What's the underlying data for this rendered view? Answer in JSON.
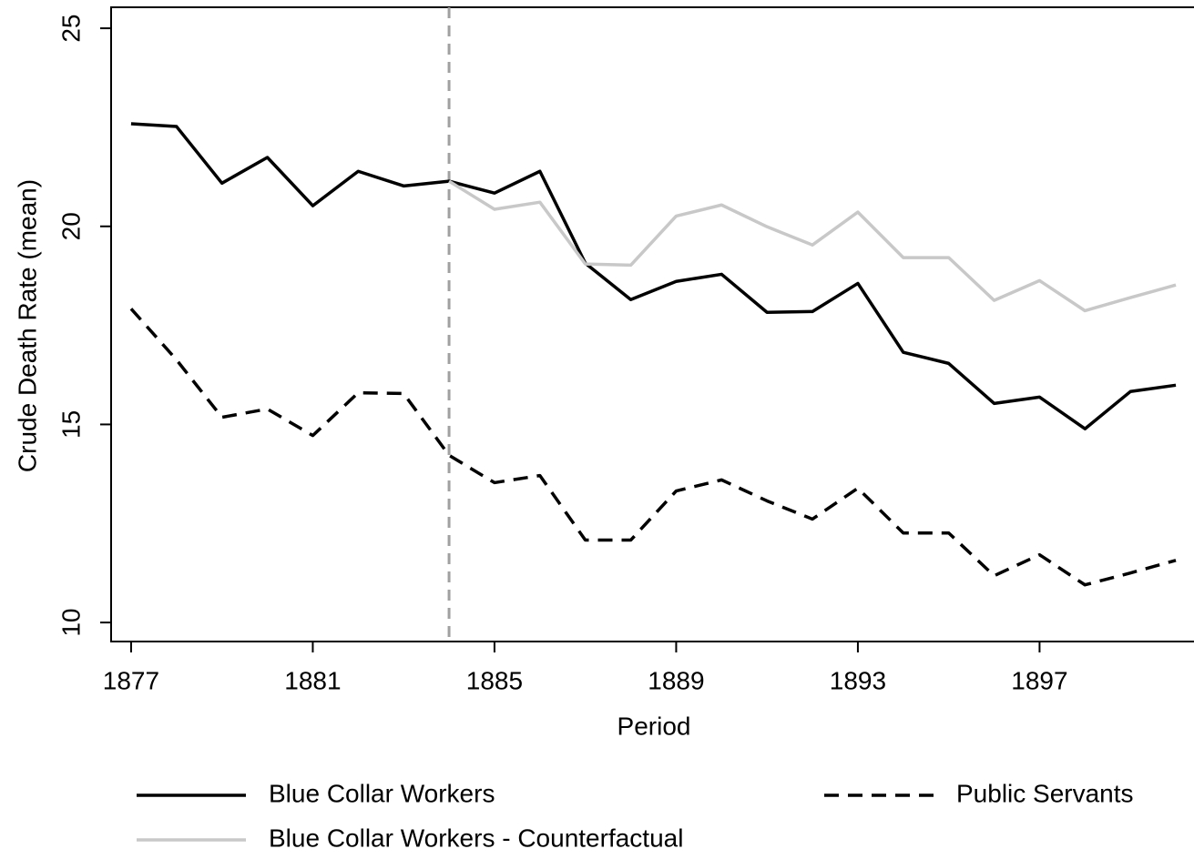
{
  "chart_data": {
    "type": "line",
    "x_label": "Period",
    "y_label": "Crude Death Rate (mean)",
    "x": [
      1877,
      1878,
      1879,
      1880,
      1881,
      1882,
      1883,
      1884,
      1885,
      1886,
      1887,
      1888,
      1889,
      1890,
      1891,
      1892,
      1893,
      1894,
      1895,
      1896,
      1897,
      1898,
      1899,
      1900
    ],
    "series": [
      {
        "name": "Blue Collar Workers",
        "color": "#000000",
        "dash": "solid",
        "values": [
          22.59,
          22.52,
          21.09,
          21.74,
          20.52,
          21.39,
          21.02,
          21.14,
          20.84,
          21.39,
          19.07,
          18.15,
          18.61,
          18.79,
          17.83,
          17.85,
          18.56,
          16.82,
          16.54,
          15.53,
          15.69,
          14.89,
          15.83,
          15.99
        ]
      },
      {
        "name": "Public Servants",
        "color": "#000000",
        "dash": "dashed",
        "values": [
          17.92,
          16.63,
          15.18,
          15.39,
          14.72,
          15.8,
          15.78,
          14.22,
          13.53,
          13.71,
          12.08,
          12.08,
          13.32,
          13.6,
          13.07,
          12.61,
          13.39,
          12.26,
          12.26,
          11.18,
          11.71,
          10.95,
          11.25,
          11.57
        ]
      },
      {
        "name": "Blue Collar Workers - Counterfactual",
        "color": "#c8c8c8",
        "dash": "solid",
        "values": [
          null,
          null,
          null,
          null,
          null,
          null,
          null,
          21.14,
          20.43,
          20.61,
          19.05,
          19.02,
          20.26,
          20.54,
          19.99,
          19.53,
          20.36,
          19.21,
          19.21,
          18.13,
          18.63,
          17.87,
          18.2,
          18.52
        ]
      }
    ],
    "vline": 1884,
    "vline_color": "#a0a0a0",
    "xlim": [
      1876.56,
      1900.4
    ],
    "ylim": [
      9.52,
      25.53
    ],
    "xticks": [
      1877,
      1881,
      1885,
      1889,
      1893,
      1897
    ],
    "yticks": [
      10,
      15,
      20,
      25
    ],
    "grid": false
  }
}
